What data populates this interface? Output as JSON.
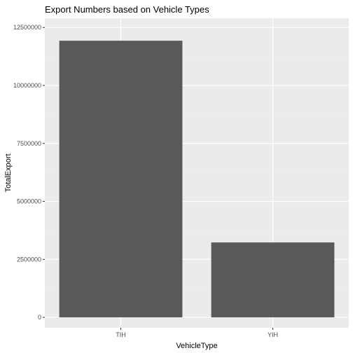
{
  "chart_data": {
    "type": "bar",
    "title": "Export Numbers based on Vehicle Types",
    "xlabel": "VehicleType",
    "ylabel": "TotalExport",
    "categories": [
      "TIH",
      "YIH"
    ],
    "values": [
      11930000,
      3230000
    ],
    "ylim": [
      -450000,
      12900000
    ],
    "yticks": [
      0,
      2500000,
      5000000,
      7500000,
      10000000,
      12500000
    ],
    "ytick_labels": [
      "0",
      "2500000",
      "5000000",
      "7500000",
      "10000000",
      "12500000"
    ],
    "grid": true,
    "legend": "none",
    "colors": {
      "bar": "#595959",
      "panel": "#ebebeb",
      "grid_major": "#ffffff",
      "grid_minor": "#f2f2f2"
    }
  }
}
